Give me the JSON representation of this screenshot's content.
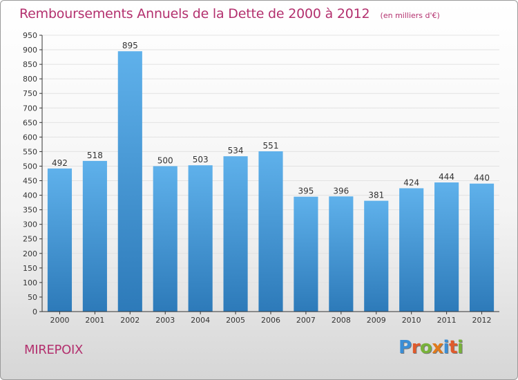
{
  "header": {
    "title": "Remboursements Annuels de la Dette de 2000 à 2012",
    "subtitle": "(en milliers d'€)"
  },
  "footer": {
    "commune": "MIREPOIX",
    "logo_letters": [
      "P",
      "r",
      "o",
      "x",
      "i",
      "t",
      "i"
    ],
    "logo_colors": [
      "#3a8ed6",
      "#e05a2c",
      "#78b23a",
      "#e07a1c",
      "#3a8ed6",
      "#e05a2c",
      "#78b23a"
    ]
  },
  "chart_data": {
    "type": "bar",
    "categories": [
      "2000",
      "2001",
      "2002",
      "2003",
      "2004",
      "2005",
      "2006",
      "2007",
      "2008",
      "2009",
      "2010",
      "2011",
      "2012"
    ],
    "values": [
      492,
      518,
      895,
      500,
      503,
      534,
      551,
      395,
      396,
      381,
      424,
      444,
      440
    ],
    "ylim": [
      0,
      950
    ],
    "ytick_step": 50,
    "grid": true,
    "colors": {
      "bar_top": "#5fb1eb",
      "bar_bottom": "#2d7ab9",
      "axis": "#333333",
      "grid": "#e2e2e2"
    }
  }
}
